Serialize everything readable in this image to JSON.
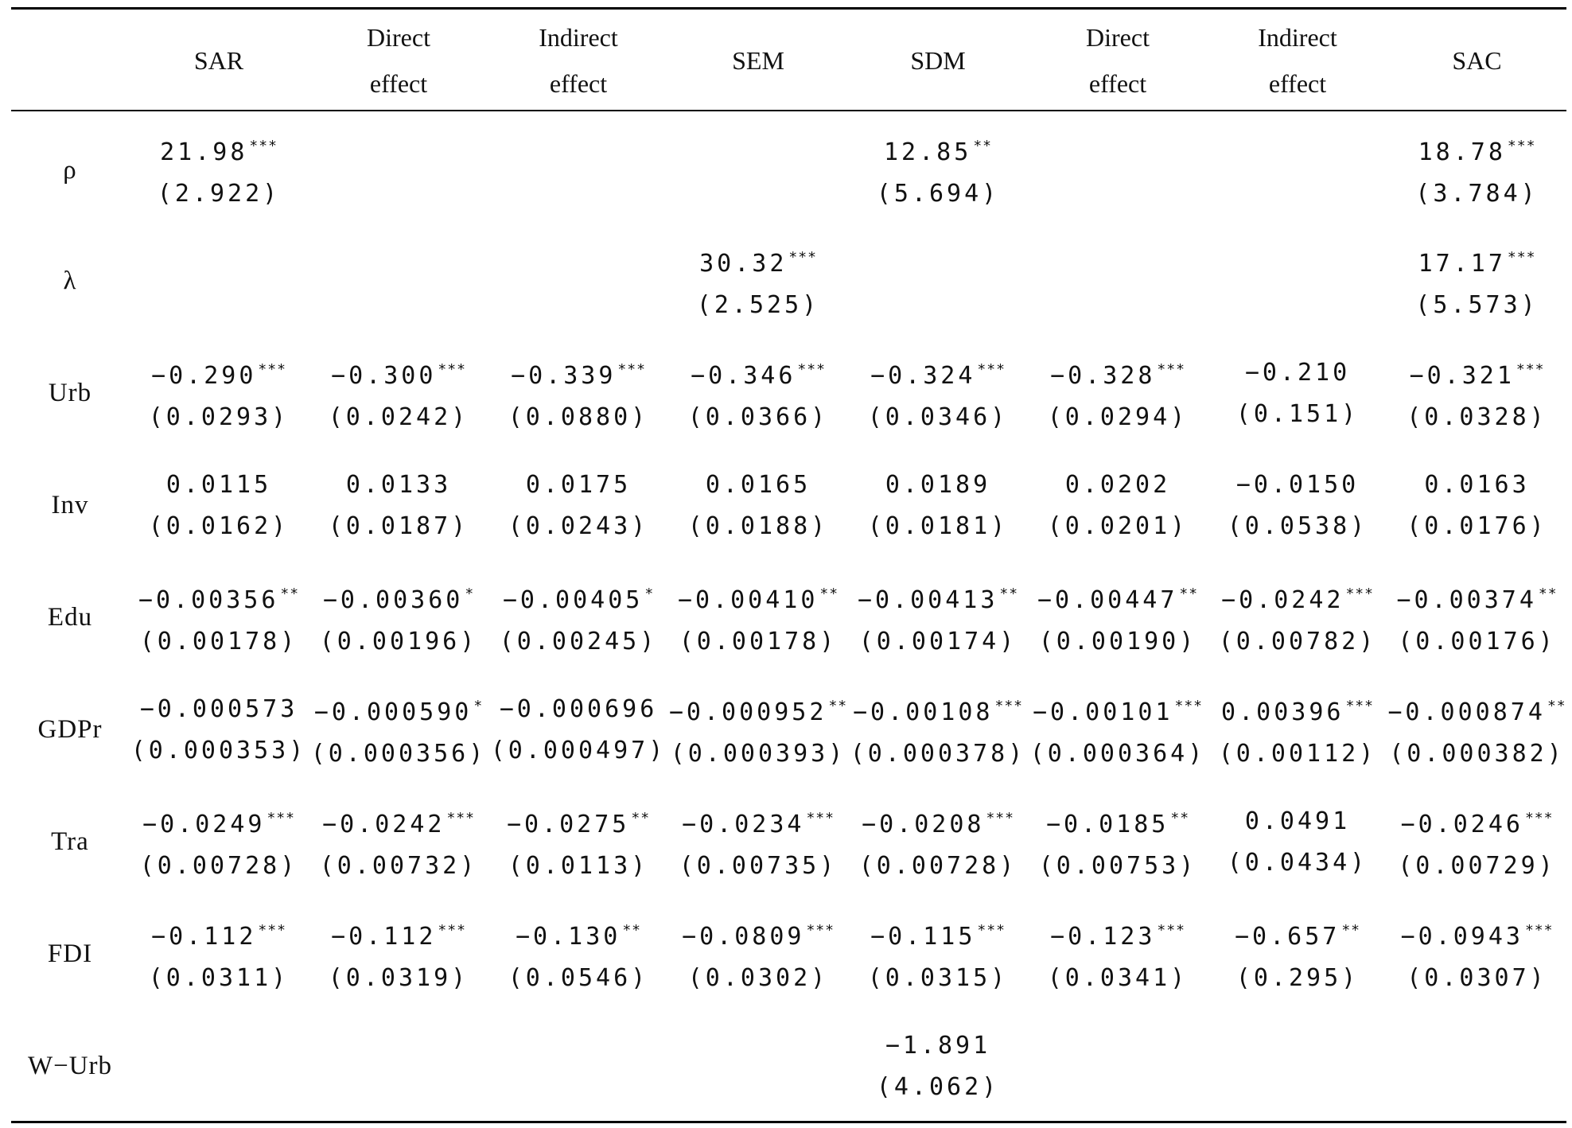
{
  "table": {
    "header": {
      "corner": "",
      "columns": [
        {
          "line1": "SAR",
          "line2": ""
        },
        {
          "line1": "Direct",
          "line2": "effect"
        },
        {
          "line1": "Indirect",
          "line2": "effect"
        },
        {
          "line1": "SEM",
          "line2": ""
        },
        {
          "line1": "SDM",
          "line2": ""
        },
        {
          "line1": "Direct",
          "line2": "effect"
        },
        {
          "line1": "Indirect",
          "line2": "effect"
        },
        {
          "line1": "SAC",
          "line2": ""
        }
      ]
    },
    "rows": [
      {
        "label": "ρ",
        "cells": [
          {
            "coef": "21.98",
            "stars": "***",
            "se": "(2.922)"
          },
          {
            "coef": "",
            "stars": "",
            "se": ""
          },
          {
            "coef": "",
            "stars": "",
            "se": ""
          },
          {
            "coef": "",
            "stars": "",
            "se": ""
          },
          {
            "coef": "12.85",
            "stars": "**",
            "se": "(5.694)"
          },
          {
            "coef": "",
            "stars": "",
            "se": ""
          },
          {
            "coef": "",
            "stars": "",
            "se": ""
          },
          {
            "coef": "18.78",
            "stars": "***",
            "se": "(3.784)"
          }
        ]
      },
      {
        "label": "λ",
        "cells": [
          {
            "coef": "",
            "stars": "",
            "se": ""
          },
          {
            "coef": "",
            "stars": "",
            "se": ""
          },
          {
            "coef": "",
            "stars": "",
            "se": ""
          },
          {
            "coef": "30.32",
            "stars": "***",
            "se": "(2.525)"
          },
          {
            "coef": "",
            "stars": "",
            "se": ""
          },
          {
            "coef": "",
            "stars": "",
            "se": ""
          },
          {
            "coef": "",
            "stars": "",
            "se": ""
          },
          {
            "coef": "17.17",
            "stars": "***",
            "se": "(5.573)"
          }
        ]
      },
      {
        "label": "Urb",
        "cells": [
          {
            "coef": "−0.290",
            "stars": "***",
            "se": "(0.0293)"
          },
          {
            "coef": "−0.300",
            "stars": "***",
            "se": "(0.0242)"
          },
          {
            "coef": "−0.339",
            "stars": "***",
            "se": "(0.0880)"
          },
          {
            "coef": "−0.346",
            "stars": "***",
            "se": "(0.0366)"
          },
          {
            "coef": "−0.324",
            "stars": "***",
            "se": "(0.0346)"
          },
          {
            "coef": "−0.328",
            "stars": "***",
            "se": "(0.0294)"
          },
          {
            "coef": "−0.210",
            "stars": "",
            "se": "(0.151)"
          },
          {
            "coef": "−0.321",
            "stars": "***",
            "se": "(0.0328)"
          }
        ]
      },
      {
        "label": "Inv",
        "cells": [
          {
            "coef": "0.0115",
            "stars": "",
            "se": "(0.0162)"
          },
          {
            "coef": "0.0133",
            "stars": "",
            "se": "(0.0187)"
          },
          {
            "coef": "0.0175",
            "stars": "",
            "se": "(0.0243)"
          },
          {
            "coef": "0.0165",
            "stars": "",
            "se": "(0.0188)"
          },
          {
            "coef": "0.0189",
            "stars": "",
            "se": "(0.0181)"
          },
          {
            "coef": "0.0202",
            "stars": "",
            "se": "(0.0201)"
          },
          {
            "coef": "−0.0150",
            "stars": "",
            "se": "(0.0538)"
          },
          {
            "coef": "0.0163",
            "stars": "",
            "se": "(0.0176)"
          }
        ]
      },
      {
        "label": "Edu",
        "cells": [
          {
            "coef": "−0.00356",
            "stars": "**",
            "se": "(0.00178)"
          },
          {
            "coef": "−0.00360",
            "stars": "*",
            "se": "(0.00196)"
          },
          {
            "coef": "−0.00405",
            "stars": "*",
            "se": "(0.00245)"
          },
          {
            "coef": "−0.00410",
            "stars": "**",
            "se": "(0.00178)"
          },
          {
            "coef": "−0.00413",
            "stars": "**",
            "se": "(0.00174)"
          },
          {
            "coef": "−0.00447",
            "stars": "**",
            "se": "(0.00190)"
          },
          {
            "coef": "−0.0242",
            "stars": "***",
            "se": "(0.00782)"
          },
          {
            "coef": "−0.00374",
            "stars": "**",
            "se": "(0.00176)"
          }
        ]
      },
      {
        "label": "GDPr",
        "cells": [
          {
            "coef": "−0.000573",
            "stars": "",
            "se": "(0.000353)"
          },
          {
            "coef": "−0.000590",
            "stars": "*",
            "se": "(0.000356)"
          },
          {
            "coef": "−0.000696",
            "stars": "",
            "se": "(0.000497)"
          },
          {
            "coef": "−0.000952",
            "stars": "**",
            "se": "(0.000393)"
          },
          {
            "coef": "−0.00108",
            "stars": "***",
            "se": "(0.000378)"
          },
          {
            "coef": "−0.00101",
            "stars": "***",
            "se": "(0.000364)"
          },
          {
            "coef": "0.00396",
            "stars": "***",
            "se": "(0.00112)"
          },
          {
            "coef": "−0.000874",
            "stars": "**",
            "se": "(0.000382)"
          }
        ]
      },
      {
        "label": "Tra",
        "cells": [
          {
            "coef": "−0.0249",
            "stars": "***",
            "se": "(0.00728)"
          },
          {
            "coef": "−0.0242",
            "stars": "***",
            "se": "(0.00732)"
          },
          {
            "coef": "−0.0275",
            "stars": "**",
            "se": "(0.0113)"
          },
          {
            "coef": "−0.0234",
            "stars": "***",
            "se": "(0.00735)"
          },
          {
            "coef": "−0.0208",
            "stars": "***",
            "se": "(0.00728)"
          },
          {
            "coef": "−0.0185",
            "stars": "**",
            "se": "(0.00753)"
          },
          {
            "coef": "0.0491",
            "stars": "",
            "se": "(0.0434)"
          },
          {
            "coef": "−0.0246",
            "stars": "***",
            "se": "(0.00729)"
          }
        ]
      },
      {
        "label": "FDI",
        "cells": [
          {
            "coef": "−0.112",
            "stars": "***",
            "se": "(0.0311)"
          },
          {
            "coef": "−0.112",
            "stars": "***",
            "se": "(0.0319)"
          },
          {
            "coef": "−0.130",
            "stars": "**",
            "se": "(0.0546)"
          },
          {
            "coef": "−0.0809",
            "stars": "***",
            "se": "(0.0302)"
          },
          {
            "coef": "−0.115",
            "stars": "***",
            "se": "(0.0315)"
          },
          {
            "coef": "−0.123",
            "stars": "***",
            "se": "(0.0341)"
          },
          {
            "coef": "−0.657",
            "stars": "**",
            "se": "(0.295)"
          },
          {
            "coef": "−0.0943",
            "stars": "***",
            "se": "(0.0307)"
          }
        ]
      },
      {
        "label": "W−Urb",
        "cells": [
          {
            "coef": "",
            "stars": "",
            "se": ""
          },
          {
            "coef": "",
            "stars": "",
            "se": ""
          },
          {
            "coef": "",
            "stars": "",
            "se": ""
          },
          {
            "coef": "",
            "stars": "",
            "se": ""
          },
          {
            "coef": "−1.891",
            "stars": "",
            "se": "(4.062)"
          },
          {
            "coef": "",
            "stars": "",
            "se": ""
          },
          {
            "coef": "",
            "stars": "",
            "se": ""
          },
          {
            "coef": "",
            "stars": "",
            "se": ""
          }
        ]
      }
    ]
  }
}
